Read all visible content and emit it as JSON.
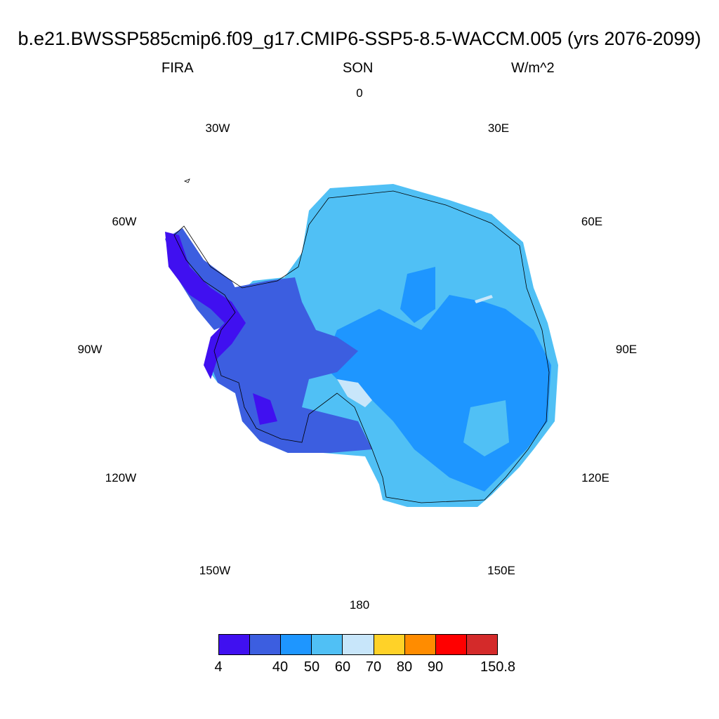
{
  "title": "b.e21.BWSSP585cmip6.f09_g17.CMIP6-SSP5-8.5-WACCM.005 (yrs 2076-2099)",
  "variable": "FIRA",
  "season": "SON",
  "units": "W/m^2",
  "longitude_labels": [
    "0",
    "30E",
    "60E",
    "90E",
    "120E",
    "150E",
    "180",
    "150W",
    "120W",
    "90W",
    "60W",
    "30W"
  ],
  "colorbar": {
    "colors": [
      "#4010f0",
      "#3c5ee0",
      "#1e96ff",
      "#50c0f5",
      "#c8e6fa",
      "#ffd228",
      "#ff8c00",
      "#ff0000",
      "#d42a2a"
    ],
    "tick_labels": [
      "4",
      "40",
      "50",
      "60",
      "70",
      "80",
      "90",
      "150.8"
    ]
  }
}
